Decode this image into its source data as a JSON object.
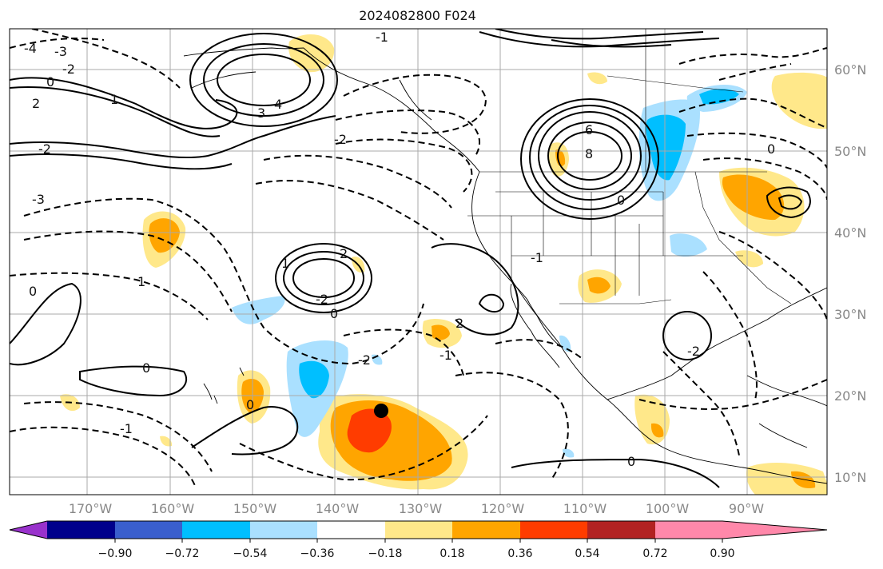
{
  "title": "2024082800 F024",
  "map": {
    "lon_labels": [
      "170°W",
      "160°W",
      "150°W",
      "140°W",
      "130°W",
      "120°W",
      "110°W",
      "100°W",
      "90°W"
    ],
    "lat_labels": [
      "60°N",
      "50°N",
      "40°N",
      "30°N",
      "20°N",
      "10°N"
    ],
    "marker": "black-dot"
  },
  "contour_labels": [
    "-4",
    "-3",
    "-2",
    "0",
    "1",
    "2",
    "-2",
    "3",
    "4",
    "-2",
    "-1",
    "-3",
    "6",
    "8",
    "0",
    "-1",
    "2",
    "1",
    "-2",
    "0",
    "1",
    "0",
    "-2",
    "0",
    "-1",
    "0",
    "0",
    "-1",
    "0",
    "2",
    "-2"
  ],
  "colorbar": {
    "ticks": [
      "−0.90",
      "−0.72",
      "−0.54",
      "−0.36",
      "−0.18",
      "0.18",
      "0.36",
      "0.54",
      "0.72",
      "0.90"
    ],
    "colors": [
      "#9932cc",
      "#00008b",
      "#3a5fcd",
      "#00bfff",
      "#aae0ff",
      "#ffffff",
      "#ffe88a",
      "#ffa500",
      "#ff3c00",
      "#b22222",
      "#ff88aa"
    ]
  }
}
